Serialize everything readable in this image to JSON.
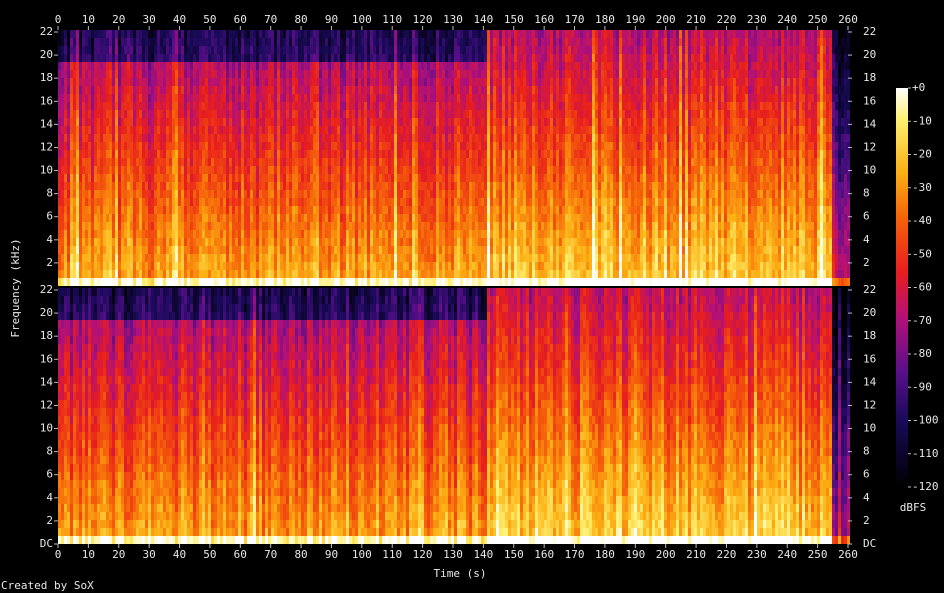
{
  "chart_data": {
    "type": "spectrogram",
    "xlabel": "Time (s)",
    "ylabel": "Frequency (kHz)",
    "xlim": [
      0,
      260
    ],
    "xticks": [
      0,
      10,
      20,
      30,
      40,
      50,
      60,
      70,
      80,
      90,
      100,
      110,
      120,
      130,
      140,
      150,
      160,
      170,
      180,
      190,
      200,
      210,
      220,
      230,
      240,
      250,
      260
    ],
    "channels": [
      {
        "ylim": [
          0,
          22
        ],
        "yticks": [
          2,
          4,
          6,
          8,
          10,
          12,
          14,
          16,
          18,
          20,
          22
        ]
      },
      {
        "ylim": [
          0,
          22
        ],
        "yticks": [
          {
            "value": 0,
            "label": "DC"
          },
          2,
          4,
          6,
          8,
          10,
          12,
          14,
          16,
          18,
          20,
          22
        ]
      }
    ],
    "colorbar": {
      "label": "dBFS",
      "lim": [
        -120,
        0
      ],
      "ticks": [
        {
          "value": 0,
          "label": "+0"
        },
        -10,
        -20,
        -30,
        -40,
        -50,
        -60,
        -70,
        -80,
        -90,
        -100,
        -110,
        -120
      ]
    },
    "footer": "Created by SoX"
  }
}
